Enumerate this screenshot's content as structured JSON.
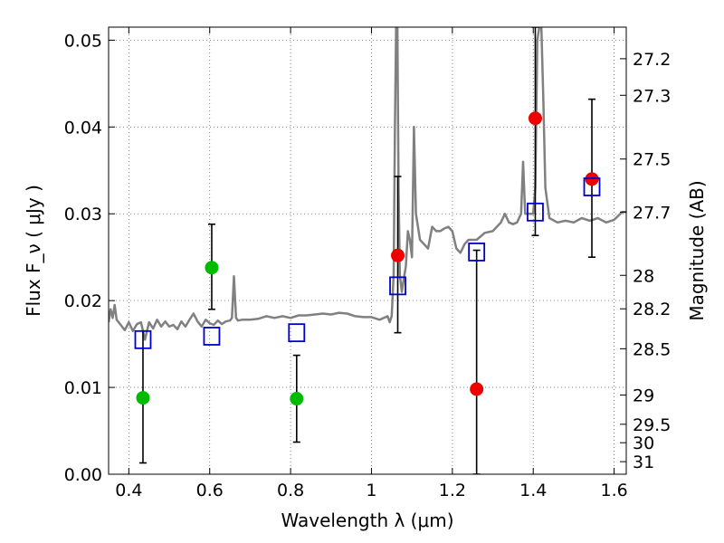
{
  "chart_data": {
    "type": "scatter",
    "xlabel": "Wavelength  λ (μm)",
    "ylabel": "Flux  F_ν  ( μJy )",
    "y2label": "Magnitude (AB)",
    "xlim": [
      0.35,
      1.63
    ],
    "ylim": [
      0.0,
      0.0515
    ],
    "x_ticks": [
      0.4,
      0.6,
      0.8,
      1.0,
      1.2,
      1.4,
      1.6
    ],
    "x_tick_labels": [
      "0.4",
      "0.6",
      "0.8",
      "1",
      "1.2",
      "1.4",
      "1.6"
    ],
    "y_ticks": [
      0.0,
      0.01,
      0.02,
      0.03,
      0.04,
      0.05
    ],
    "y_tick_labels": [
      "0.00",
      "0.01",
      "0.02",
      "0.03",
      "0.04",
      "0.05"
    ],
    "y2_tick_labels": [
      "27.2",
      "27.3",
      "27.5",
      "27.7",
      "28",
      "28.2",
      "28.5",
      "29",
      "29.5",
      "30",
      "31"
    ],
    "grid": true,
    "colors": {
      "spectrum": "#808080",
      "optical": "#00bb00",
      "nir": "#ee0000",
      "model": "#0000cc",
      "error": "#000000",
      "grid": "#666666"
    },
    "spectrum": [
      [
        0.35,
        0.0175
      ],
      [
        0.355,
        0.019
      ],
      [
        0.36,
        0.018
      ],
      [
        0.365,
        0.0195
      ],
      [
        0.37,
        0.0178
      ],
      [
        0.38,
        0.0172
      ],
      [
        0.39,
        0.0166
      ],
      [
        0.4,
        0.0175
      ],
      [
        0.41,
        0.0165
      ],
      [
        0.42,
        0.0173
      ],
      [
        0.43,
        0.0175
      ],
      [
        0.44,
        0.0155
      ],
      [
        0.45,
        0.0175
      ],
      [
        0.46,
        0.0168
      ],
      [
        0.47,
        0.0178
      ],
      [
        0.48,
        0.017
      ],
      [
        0.49,
        0.0176
      ],
      [
        0.5,
        0.017
      ],
      [
        0.51,
        0.0172
      ],
      [
        0.52,
        0.0167
      ],
      [
        0.53,
        0.0176
      ],
      [
        0.54,
        0.017
      ],
      [
        0.55,
        0.0178
      ],
      [
        0.56,
        0.0185
      ],
      [
        0.57,
        0.0176
      ],
      [
        0.58,
        0.017
      ],
      [
        0.59,
        0.0178
      ],
      [
        0.6,
        0.0174
      ],
      [
        0.61,
        0.0172
      ],
      [
        0.62,
        0.0177
      ],
      [
        0.63,
        0.0173
      ],
      [
        0.64,
        0.0176
      ],
      [
        0.65,
        0.0177
      ],
      [
        0.655,
        0.018
      ],
      [
        0.66,
        0.0228
      ],
      [
        0.665,
        0.018
      ],
      [
        0.67,
        0.0177
      ],
      [
        0.68,
        0.0178
      ],
      [
        0.7,
        0.0178
      ],
      [
        0.72,
        0.0179
      ],
      [
        0.74,
        0.0182
      ],
      [
        0.76,
        0.018
      ],
      [
        0.78,
        0.0182
      ],
      [
        0.8,
        0.018
      ],
      [
        0.82,
        0.0183
      ],
      [
        0.84,
        0.0183
      ],
      [
        0.86,
        0.0184
      ],
      [
        0.88,
        0.0185
      ],
      [
        0.9,
        0.0184
      ],
      [
        0.92,
        0.0186
      ],
      [
        0.94,
        0.0185
      ],
      [
        0.96,
        0.0182
      ],
      [
        0.98,
        0.0181
      ],
      [
        1.0,
        0.0181
      ],
      [
        1.02,
        0.0178
      ],
      [
        1.04,
        0.0182
      ],
      [
        1.045,
        0.0175
      ],
      [
        1.05,
        0.0182
      ],
      [
        1.055,
        0.023
      ],
      [
        1.058,
        0.04
      ],
      [
        1.061,
        0.0515
      ],
      [
        1.064,
        0.0515
      ],
      [
        1.067,
        0.033
      ],
      [
        1.07,
        0.023
      ],
      [
        1.075,
        0.021
      ],
      [
        1.08,
        0.0225
      ],
      [
        1.085,
        0.024
      ],
      [
        1.09,
        0.028
      ],
      [
        1.095,
        0.027
      ],
      [
        1.1,
        0.025
      ],
      [
        1.105,
        0.04
      ],
      [
        1.11,
        0.03
      ],
      [
        1.12,
        0.027
      ],
      [
        1.13,
        0.0265
      ],
      [
        1.14,
        0.026
      ],
      [
        1.15,
        0.0285
      ],
      [
        1.16,
        0.028
      ],
      [
        1.17,
        0.028
      ],
      [
        1.18,
        0.0283
      ],
      [
        1.19,
        0.0285
      ],
      [
        1.2,
        0.028
      ],
      [
        1.21,
        0.026
      ],
      [
        1.22,
        0.0255
      ],
      [
        1.23,
        0.0265
      ],
      [
        1.24,
        0.027
      ],
      [
        1.26,
        0.027
      ],
      [
        1.28,
        0.0278
      ],
      [
        1.3,
        0.028
      ],
      [
        1.32,
        0.029
      ],
      [
        1.33,
        0.03
      ],
      [
        1.34,
        0.029
      ],
      [
        1.35,
        0.0288
      ],
      [
        1.36,
        0.029
      ],
      [
        1.37,
        0.03
      ],
      [
        1.375,
        0.036
      ],
      [
        1.38,
        0.03
      ],
      [
        1.39,
        0.03
      ],
      [
        1.4,
        0.03
      ],
      [
        1.405,
        0.033
      ],
      [
        1.41,
        0.05
      ],
      [
        1.415,
        0.0515
      ],
      [
        1.42,
        0.0515
      ],
      [
        1.425,
        0.043
      ],
      [
        1.43,
        0.033
      ],
      [
        1.44,
        0.0295
      ],
      [
        1.46,
        0.029
      ],
      [
        1.48,
        0.0292
      ],
      [
        1.5,
        0.029
      ],
      [
        1.52,
        0.0295
      ],
      [
        1.54,
        0.0292
      ],
      [
        1.56,
        0.0295
      ],
      [
        1.58,
        0.029
      ],
      [
        1.6,
        0.0293
      ],
      [
        1.62,
        0.0302
      ],
      [
        1.63,
        0.0302
      ]
    ],
    "series": [
      {
        "marker": "circle",
        "color": "#00bb00",
        "points": [
          {
            "x": 0.435,
            "y": 0.0088,
            "err": [
              0.0013,
              0.0165
            ]
          },
          {
            "x": 0.605,
            "y": 0.0238,
            "err": [
              0.019,
              0.0288
            ]
          },
          {
            "x": 0.815,
            "y": 0.0087,
            "err": [
              0.0037,
              0.0137
            ]
          }
        ]
      },
      {
        "marker": "circle",
        "color": "#ee0000",
        "points": [
          {
            "x": 1.065,
            "y": 0.0252,
            "err": [
              0.0163,
              0.0343
            ]
          },
          {
            "x": 1.26,
            "y": 0.0098,
            "err": [
              0.0,
              0.0258
            ]
          },
          {
            "x": 1.405,
            "y": 0.041,
            "err": [
              0.0275,
              0.0515
            ]
          },
          {
            "x": 1.545,
            "y": 0.034,
            "err": [
              0.025,
              0.0432
            ]
          }
        ]
      },
      {
        "marker": "square-open",
        "color": "#0000cc",
        "points": [
          {
            "x": 0.435,
            "y": 0.0155
          },
          {
            "x": 0.605,
            "y": 0.0159
          },
          {
            "x": 0.815,
            "y": 0.0163
          },
          {
            "x": 1.065,
            "y": 0.0217
          },
          {
            "x": 1.26,
            "y": 0.0256
          },
          {
            "x": 1.405,
            "y": 0.0302
          },
          {
            "x": 1.545,
            "y": 0.0331
          }
        ]
      }
    ]
  }
}
